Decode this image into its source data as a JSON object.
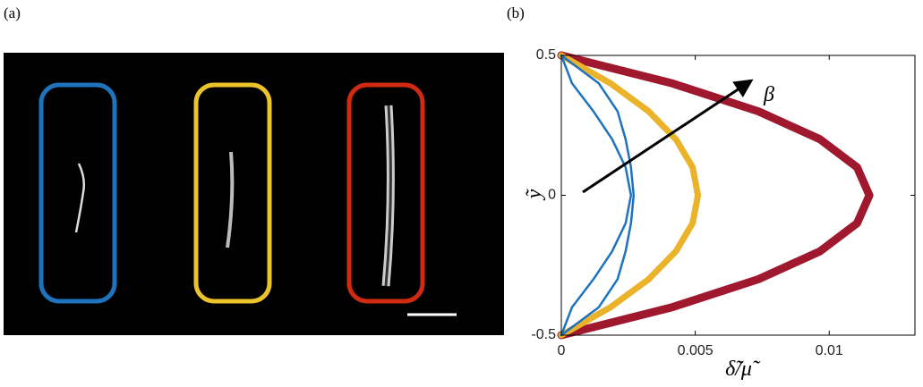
{
  "panels": {
    "a": "(a)",
    "b": "(b)"
  },
  "chart_data": {
    "type": "line",
    "orientation": "horizontal",
    "xlabel": "δ̃/μ̃",
    "ylabel": "ỹ",
    "annotation": "β",
    "y": [
      -0.5,
      -0.4,
      -0.3,
      -0.2,
      -0.1,
      0,
      0.1,
      0.2,
      0.3,
      0.4,
      0.5
    ],
    "series": [
      {
        "color": "#a0182e",
        "values": [
          0,
          0.00414,
          0.00736,
          0.00966,
          0.01104,
          0.0115,
          0.01104,
          0.00966,
          0.00736,
          0.00414,
          0
        ]
      },
      {
        "color": "#ebb32a",
        "values": [
          0,
          0.00184,
          0.00326,
          0.00428,
          0.0049,
          0.0051,
          0.0049,
          0.00428,
          0.00326,
          0.00184,
          0
        ]
      },
      {
        "color": "#1e73be",
        "values": [
          0,
          0.0014,
          0.0021,
          0.0024,
          0.0026,
          0.0027,
          0.0026,
          0.0024,
          0.0021,
          0.0014,
          0
        ]
      },
      {
        "color": "#1e73be",
        "values": [
          0,
          0.0004,
          0.0012,
          0.0019,
          0.0024,
          0.0026,
          0.0024,
          0.0019,
          0.0012,
          0.0004,
          0
        ]
      }
    ],
    "xlim": [
      0,
      0.0132
    ],
    "xticks": [
      0,
      0.005,
      0.01
    ],
    "ylim": [
      -0.5,
      0.5
    ],
    "yticks": [
      -0.5,
      0,
      0.5
    ]
  }
}
